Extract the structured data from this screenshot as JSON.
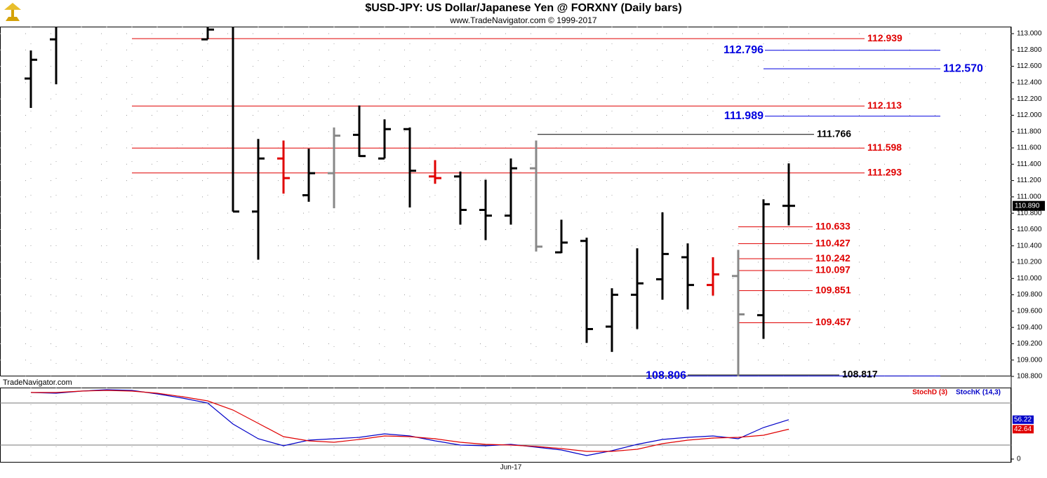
{
  "chart_data": [
    {
      "type": "ohlc",
      "title": "$USD-JPY:  US Dollar/Japanese Yen @ FORXNY  (Daily bars)",
      "subtitle": "www.TradeNavigator.com © 1999-2017",
      "watermark": "TradeNavigator.com",
      "open": [
        112.45,
        112.93,
        null,
        null,
        null,
        null,
        null,
        112.93,
        113.1,
        110.82,
        111.47,
        111.02,
        111.29,
        111.76,
        111.47,
        111.83,
        111.25,
        111.25,
        110.84,
        110.77,
        111.35,
        110.32,
        110.46,
        109.41,
        109.8,
        109.99,
        110.26,
        109.92,
        110.03,
        109.55,
        110.89
      ],
      "high": [
        112.794,
        113.2,
        null,
        null,
        null,
        null,
        null,
        113.2,
        113.2,
        111.71,
        111.69,
        111.59,
        111.85,
        112.12,
        111.95,
        111.85,
        111.45,
        111.31,
        111.21,
        111.47,
        111.69,
        110.72,
        110.5,
        109.88,
        110.37,
        110.81,
        110.43,
        110.26,
        110.35,
        110.97,
        111.41
      ],
      "low": [
        112.09,
        112.38,
        null,
        null,
        null,
        null,
        null,
        112.93,
        110.82,
        110.23,
        111.04,
        110.94,
        110.86,
        111.49,
        111.47,
        110.87,
        111.16,
        110.66,
        110.47,
        110.66,
        110.33,
        110.31,
        109.21,
        109.1,
        109.38,
        109.74,
        109.62,
        109.79,
        108.8,
        109.26,
        110.65
      ],
      "close": [
        112.68,
        113.1,
        null,
        null,
        null,
        null,
        null,
        113.05,
        110.82,
        111.47,
        111.23,
        111.29,
        111.75,
        111.5,
        111.83,
        111.32,
        111.23,
        110.84,
        110.77,
        111.35,
        110.39,
        110.44,
        109.38,
        109.8,
        109.94,
        110.3,
        109.92,
        110.05,
        109.56,
        110.91,
        110.89
      ],
      "colors": [
        "#000000",
        "#000000",
        null,
        null,
        null,
        null,
        null,
        "#000000",
        "#000000",
        "#000000",
        "#e00000",
        "#000000",
        "#888888",
        "#000000",
        "#000000",
        "#000000",
        "#e00000",
        "#000000",
        "#000000",
        "#000000",
        "#888888",
        "#000000",
        "#000000",
        "#000000",
        "#000000",
        "#000000",
        "#000000",
        "#e00000",
        "#888888",
        "#000000",
        "#000000"
      ],
      "last_price": {
        "value": 110.89,
        "label": "110.890"
      },
      "levels": [
        {
          "value": 112.939,
          "color": "#e00000"
        },
        {
          "value": 112.796,
          "color": "#0000e0"
        },
        {
          "value": 112.57,
          "label": "112.570",
          "color": "#0000e0"
        },
        {
          "value": 112.113,
          "color": "#e00000"
        },
        {
          "value": 111.989,
          "color": "#0000e0"
        },
        {
          "value": 111.766,
          "color": "#000000"
        },
        {
          "value": 111.598,
          "color": "#e00000"
        },
        {
          "value": 111.293,
          "color": "#e00000"
        },
        {
          "value": 110.633,
          "color": "#e00000"
        },
        {
          "value": 110.427,
          "color": "#e00000"
        },
        {
          "value": 110.242,
          "color": "#e00000"
        },
        {
          "value": 110.097,
          "color": "#e00000"
        },
        {
          "value": 109.851,
          "color": "#e00000"
        },
        {
          "value": 109.457,
          "color": "#e00000"
        },
        {
          "value": 108.817,
          "color": "#000000"
        },
        {
          "value": 108.806,
          "color": "#0000e0"
        }
      ],
      "ylim": [
        108.783,
        113.086
      ],
      "yticks": [
        {
          "value": 108.8,
          "label": "108.800"
        },
        {
          "value": 109,
          "label": "109.000"
        },
        {
          "value": 109.2,
          "label": "109.200"
        },
        {
          "value": 109.4,
          "label": "109.400"
        },
        {
          "value": 109.6,
          "label": "109.600"
        },
        {
          "value": 109.8,
          "label": "109.800"
        },
        {
          "value": 110,
          "label": "110.000"
        },
        {
          "value": 110.2,
          "label": "110.200"
        },
        {
          "value": 110.4,
          "label": "110.400"
        },
        {
          "value": 110.6,
          "label": "110.600"
        },
        {
          "value": 110.8,
          "label": "110.800"
        },
        {
          "value": 111,
          "label": "111.000"
        },
        {
          "value": 111.2,
          "label": "111.200"
        },
        {
          "value": 111.4,
          "label": "111.400"
        },
        {
          "value": 111.6,
          "label": "111.600"
        },
        {
          "value": 111.8,
          "label": "111.800"
        },
        {
          "value": 112,
          "label": "112.000"
        },
        {
          "value": 112.2,
          "label": "112.200"
        },
        {
          "value": 112.4,
          "label": "112.400"
        },
        {
          "value": 112.6,
          "label": "112.600"
        },
        {
          "value": 112.8,
          "label": "112.800"
        },
        {
          "value": 113,
          "label": "113.000"
        }
      ],
      "grid": true
    },
    {
      "type": "line",
      "categories": [
        null,
        null,
        null,
        null,
        null,
        null,
        null,
        null,
        null,
        null,
        null,
        null,
        null,
        null,
        null,
        null,
        null,
        null,
        null,
        "Jun-17",
        null,
        null,
        null,
        null,
        null,
        null,
        null,
        null,
        null,
        null,
        null
      ],
      "series": [
        {
          "name": "StochK (14,3)",
          "color": "#0000c8",
          "values": [
            95,
            94,
            97,
            99,
            98,
            93,
            87,
            80,
            50,
            29,
            19,
            27,
            29,
            31,
            36,
            33,
            26,
            20,
            19,
            21,
            17,
            13,
            5,
            12,
            21,
            28,
            31,
            33,
            29,
            45,
            56.22
          ]
        },
        {
          "name": "StochD (3)",
          "color": "#e00000",
          "values": [
            95,
            95,
            97,
            98,
            97,
            94,
            89,
            83,
            70,
            51,
            32,
            26,
            24,
            28,
            33,
            32,
            29,
            24,
            21,
            20,
            18,
            15,
            11,
            11,
            14,
            22,
            27,
            30,
            31,
            34,
            42.64
          ]
        }
      ],
      "reference_lines": [
        20,
        80
      ],
      "ylim": [
        -2,
        102
      ],
      "yticks": [
        0
      ],
      "grid": true
    }
  ]
}
